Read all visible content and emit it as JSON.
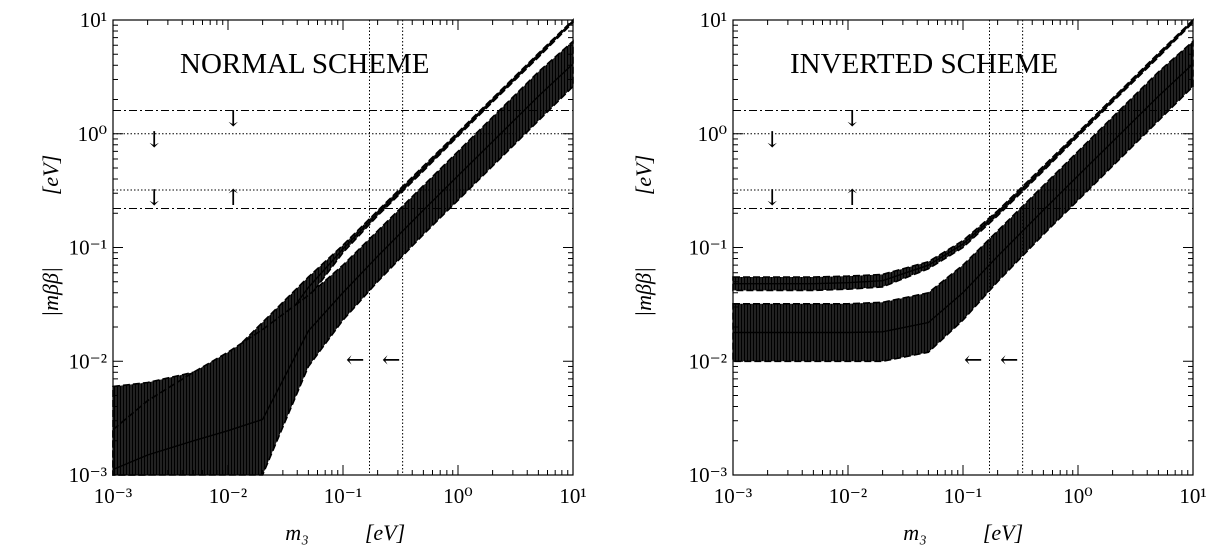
{
  "chart_data": [
    {
      "type": "line",
      "title": "NORMAL SCHEME",
      "x_scale": "log",
      "y_scale": "log",
      "xlim": [
        0.001,
        10
      ],
      "ylim": [
        0.001,
        10
      ],
      "xlabel": "m₃",
      "xunit": "[eV]",
      "ylabel": "|mββ|",
      "yunit": "[eV]",
      "x_ticks": [
        "10⁻³",
        "10⁻²",
        "10⁻¹",
        "10⁰",
        "10¹"
      ],
      "y_ticks": [
        "10⁻³",
        "10⁻²",
        "10⁻¹",
        "10⁰",
        "10¹"
      ],
      "hlines": [
        {
          "y": 1.6,
          "style": "dash-dot"
        },
        {
          "y": 0.22,
          "style": "dash-dot"
        },
        {
          "y": 1.0,
          "style": "dotted"
        },
        {
          "y": 0.32,
          "style": "dotted"
        }
      ],
      "vlines": [
        {
          "x": 0.17,
          "style": "dotted"
        },
        {
          "x": 0.33,
          "style": "dotted"
        }
      ],
      "arrows": [
        {
          "glyph": "↓",
          "x": 0.01,
          "y": 1.25
        },
        {
          "glyph": "↓",
          "x": 0.002,
          "y": 0.8
        },
        {
          "glyph": "↓",
          "x": 0.002,
          "y": 0.25
        },
        {
          "glyph": "↑",
          "x": 0.01,
          "y": 0.25
        },
        {
          "glyph": "←",
          "x": 0.12,
          "y": 0.012
        },
        {
          "glyph": "←",
          "x": 0.24,
          "y": 0.012
        }
      ],
      "series": [
        {
          "band": "upper",
          "x": [
            0.001,
            0.002,
            0.005,
            0.01,
            0.02,
            0.05,
            0.1,
            0.2,
            0.5,
            1,
            2,
            5,
            10
          ],
          "lower": [
            0.0005,
            0.0005,
            0.0012,
            0.0028,
            0.0075,
            0.036,
            0.09,
            0.19,
            0.47,
            0.95,
            1.9,
            4.7,
            9.5
          ],
          "upper": [
            0.006,
            0.0065,
            0.008,
            0.011,
            0.022,
            0.055,
            0.105,
            0.21,
            0.52,
            1.03,
            2.05,
            5.1,
            10.2
          ]
        },
        {
          "band": "lower",
          "x": [
            0.001,
            0.002,
            0.005,
            0.01,
            0.02,
            0.05,
            0.1,
            0.2,
            0.5,
            1,
            2,
            5,
            10
          ],
          "lower": [
            0.0005,
            0.0005,
            0.0005,
            0.0005,
            0.0005,
            0.009,
            0.023,
            0.05,
            0.13,
            0.26,
            0.52,
            1.3,
            2.6
          ],
          "upper": [
            0.0025,
            0.0045,
            0.008,
            0.012,
            0.019,
            0.038,
            0.07,
            0.14,
            0.35,
            0.7,
            1.4,
            3.5,
            6.5
          ]
        }
      ]
    },
    {
      "type": "line",
      "title": "INVERTED SCHEME",
      "x_scale": "log",
      "y_scale": "log",
      "xlim": [
        0.001,
        10
      ],
      "ylim": [
        0.001,
        10
      ],
      "xlabel": "m₃",
      "xunit": "[eV]",
      "ylabel": "|mββ|",
      "yunit": "[eV]",
      "x_ticks": [
        "10⁻³",
        "10⁻²",
        "10⁻¹",
        "10⁰",
        "10¹"
      ],
      "y_ticks": [
        "10⁻³",
        "10⁻²",
        "10⁻¹",
        "10⁰",
        "10¹"
      ],
      "hlines": [
        {
          "y": 1.6,
          "style": "dash-dot"
        },
        {
          "y": 0.22,
          "style": "dash-dot"
        },
        {
          "y": 1.0,
          "style": "dotted"
        },
        {
          "y": 0.32,
          "style": "dotted"
        }
      ],
      "vlines": [
        {
          "x": 0.17,
          "style": "dotted"
        },
        {
          "x": 0.33,
          "style": "dotted"
        }
      ],
      "arrows": [
        {
          "glyph": "↓",
          "x": 0.01,
          "y": 1.25
        },
        {
          "glyph": "↓",
          "x": 0.002,
          "y": 0.8
        },
        {
          "glyph": "↓",
          "x": 0.002,
          "y": 0.25
        },
        {
          "glyph": "↑",
          "x": 0.01,
          "y": 0.25
        },
        {
          "glyph": "←",
          "x": 0.12,
          "y": 0.012
        },
        {
          "glyph": "←",
          "x": 0.24,
          "y": 0.012
        }
      ],
      "series": [
        {
          "band": "upper",
          "x": [
            0.001,
            0.002,
            0.005,
            0.01,
            0.02,
            0.05,
            0.1,
            0.2,
            0.5,
            1,
            2,
            5,
            10
          ],
          "lower": [
            0.042,
            0.042,
            0.042,
            0.043,
            0.045,
            0.065,
            0.1,
            0.19,
            0.47,
            0.95,
            1.9,
            4.7,
            9.5
          ],
          "upper": [
            0.055,
            0.055,
            0.055,
            0.056,
            0.058,
            0.075,
            0.115,
            0.21,
            0.52,
            1.03,
            2.05,
            5.1,
            10.2
          ]
        },
        {
          "band": "lower",
          "x": [
            0.001,
            0.002,
            0.005,
            0.01,
            0.02,
            0.05,
            0.1,
            0.2,
            0.5,
            1,
            2,
            5,
            10
          ],
          "lower": [
            0.01,
            0.01,
            0.01,
            0.01,
            0.01,
            0.012,
            0.023,
            0.05,
            0.13,
            0.26,
            0.52,
            1.3,
            2.6
          ],
          "upper": [
            0.032,
            0.032,
            0.032,
            0.032,
            0.033,
            0.04,
            0.07,
            0.14,
            0.35,
            0.7,
            1.4,
            3.5,
            6.5
          ]
        }
      ]
    }
  ]
}
